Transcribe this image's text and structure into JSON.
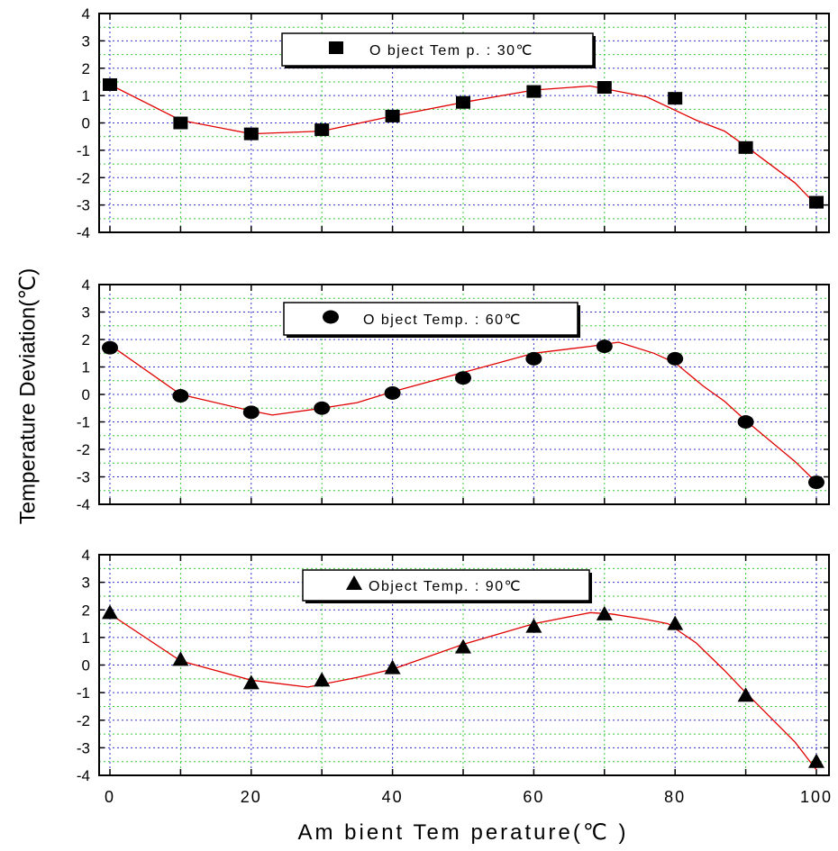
{
  "chart_data": {
    "type": "scatter",
    "xlabel": "Am bient Tem perature(℃ )",
    "ylabel": "Temperature Deviation(℃)",
    "xlim": [
      0,
      100
    ],
    "ylim": [
      -4,
      4
    ],
    "x_ticks": [
      "0",
      "20",
      "40",
      "60",
      "80",
      "100"
    ],
    "y_ticks": [
      "-4",
      "-3",
      "-2",
      "-1",
      "0",
      "1",
      "2",
      "3",
      "4"
    ],
    "grid": true,
    "panels": [
      {
        "legend": "O bject Tem p.  :  30℃",
        "marker": "square",
        "points": {
          "x": [
            0,
            10,
            20,
            30,
            40,
            50,
            60,
            70,
            80,
            90,
            100
          ],
          "y": [
            1.4,
            0.0,
            -0.4,
            -0.25,
            0.25,
            0.75,
            1.15,
            1.3,
            0.9,
            -0.9,
            -2.9
          ]
        },
        "fit_line": {
          "x": [
            0,
            10,
            20,
            30,
            40,
            50,
            60,
            68,
            76,
            83,
            87,
            90,
            97,
            100
          ],
          "y": [
            1.4,
            0.1,
            -0.4,
            -0.3,
            0.25,
            0.75,
            1.2,
            1.35,
            0.95,
            0.1,
            -0.3,
            -0.85,
            -2.2,
            -3.0
          ]
        }
      },
      {
        "legend": "O bject Temp.  :  60℃",
        "marker": "circle",
        "points": {
          "x": [
            0,
            10,
            20,
            30,
            40,
            50,
            60,
            70,
            80,
            90,
            100
          ],
          "y": [
            1.7,
            -0.05,
            -0.65,
            -0.5,
            0.05,
            0.6,
            1.3,
            1.75,
            1.3,
            -1.0,
            -3.2
          ]
        },
        "fit_line": {
          "x": [
            0,
            10,
            20,
            23,
            30,
            35,
            40,
            50,
            60,
            68,
            72,
            77,
            80,
            84,
            87,
            90,
            97,
            100
          ],
          "y": [
            1.8,
            0.0,
            -0.6,
            -0.75,
            -0.5,
            -0.3,
            0.1,
            0.8,
            1.5,
            1.75,
            1.9,
            1.5,
            1.15,
            0.3,
            -0.25,
            -0.95,
            -2.45,
            -3.2
          ]
        }
      },
      {
        "legend": "Object  Temp.  :  90℃",
        "marker": "triangle",
        "points": {
          "x": [
            0,
            10,
            20,
            30,
            40,
            50,
            60,
            70,
            80,
            90,
            100
          ],
          "y": [
            1.9,
            0.2,
            -0.65,
            -0.55,
            -0.1,
            0.65,
            1.4,
            1.85,
            1.5,
            -1.1,
            -3.5
          ]
        },
        "fit_line": {
          "x": [
            0,
            10,
            20,
            28,
            35,
            40,
            50,
            60,
            68,
            71,
            76,
            79,
            83,
            87,
            90,
            97,
            100
          ],
          "y": [
            1.85,
            0.15,
            -0.55,
            -0.8,
            -0.45,
            -0.15,
            0.75,
            1.5,
            1.9,
            1.85,
            1.65,
            1.5,
            0.8,
            -0.2,
            -1.0,
            -2.8,
            -3.8
          ]
        }
      }
    ]
  }
}
